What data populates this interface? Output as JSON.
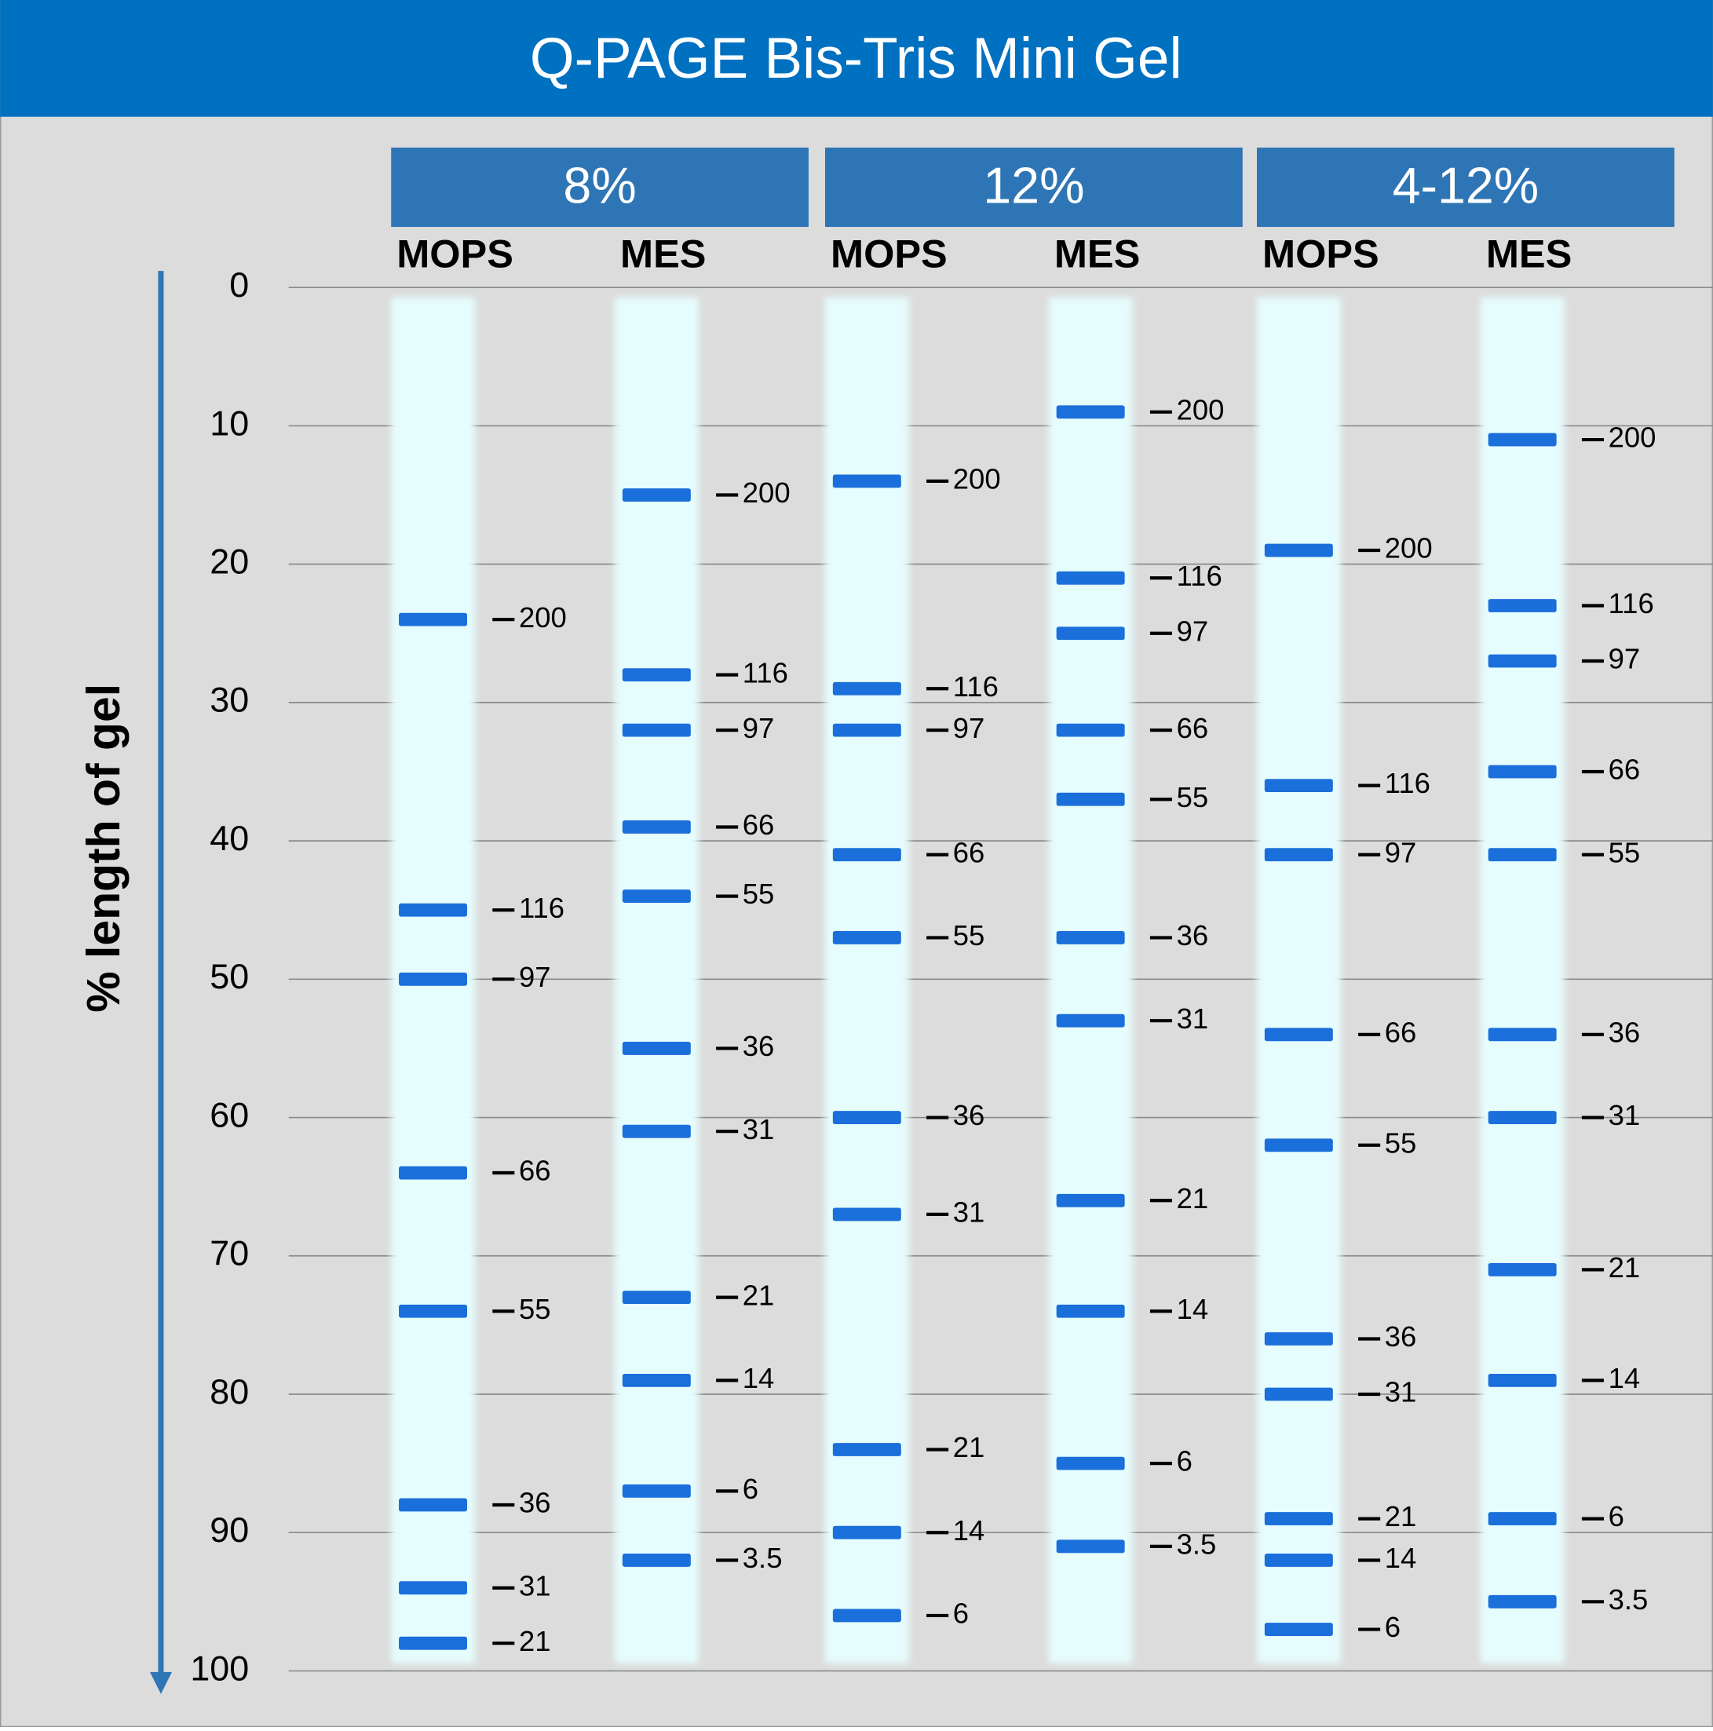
{
  "chart_data": {
    "type": "gel",
    "title": "Q-PAGE Bis-Tris Mini Gel",
    "y_label": "% length of gel",
    "ylim": [
      0,
      100
    ],
    "yticks": [
      0,
      10,
      20,
      30,
      40,
      50,
      60,
      70,
      80,
      90,
      100
    ],
    "grid": true,
    "band_color": "#1a6fdb",
    "gels": [
      {
        "name": "8%",
        "lanes": [
          {
            "name": "MOPS",
            "markers": [
              200,
              116,
              97,
              66,
              55,
              36,
              31,
              21
            ],
            "values": [
              24,
              45,
              50,
              64,
              74,
              88,
              94,
              98
            ]
          },
          {
            "name": "MES",
            "markers": [
              200,
              116,
              97,
              66,
              55,
              36,
              31,
              21,
              14,
              6,
              3.5
            ],
            "values": [
              15,
              28,
              32,
              39,
              44,
              55,
              61,
              73,
              79,
              87,
              92
            ]
          }
        ]
      },
      {
        "name": "12%",
        "lanes": [
          {
            "name": "MOPS",
            "markers": [
              200,
              116,
              97,
              66,
              55,
              36,
              31,
              21,
              14,
              6
            ],
            "values": [
              14,
              29,
              32,
              41,
              47,
              60,
              67,
              84,
              90,
              96
            ]
          },
          {
            "name": "MES",
            "markers": [
              200,
              116,
              97,
              66,
              55,
              36,
              31,
              21,
              14,
              6,
              3.5
            ],
            "values": [
              9,
              21,
              25,
              32,
              37,
              47,
              53,
              66,
              74,
              85,
              91
            ]
          }
        ]
      },
      {
        "name": "4-12%",
        "lanes": [
          {
            "name": "MOPS",
            "markers": [
              200,
              116,
              97,
              66,
              55,
              36,
              31,
              21,
              14,
              6
            ],
            "values": [
              19,
              36,
              41,
              54,
              62,
              76,
              80,
              89,
              92,
              97
            ]
          },
          {
            "name": "MES",
            "markers": [
              200,
              116,
              97,
              66,
              55,
              36,
              31,
              21,
              14,
              6,
              3.5
            ],
            "values": [
              11,
              23,
              27,
              35,
              41,
              54,
              60,
              71,
              79,
              89,
              95
            ]
          }
        ]
      }
    ]
  }
}
